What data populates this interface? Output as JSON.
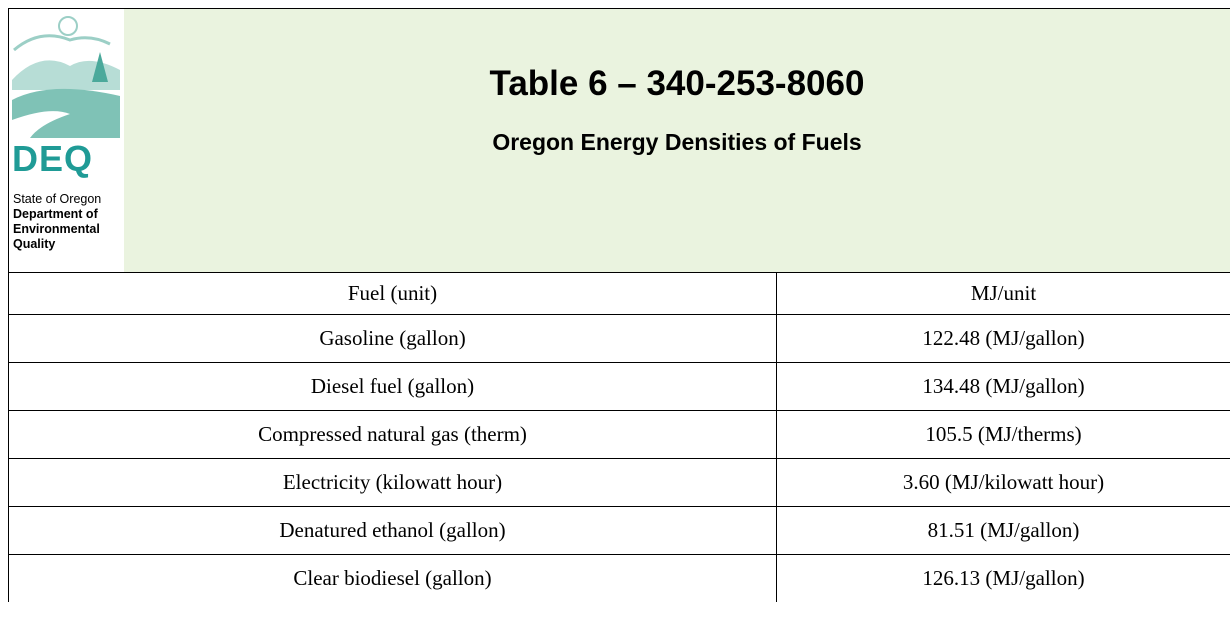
{
  "logo": {
    "acronym": "DEQ",
    "lines": [
      "State of Oregon",
      "Department of",
      "Environmental",
      "Quality"
    ]
  },
  "header": {
    "title": "Table 6 – 340-253-8060",
    "subtitle": "Oregon Energy Densities of Fuels"
  },
  "table": {
    "columns": [
      "Fuel (unit)",
      "MJ/unit"
    ],
    "rows": [
      [
        "Gasoline (gallon)",
        "122.48 (MJ/gallon)"
      ],
      [
        "Diesel fuel (gallon)",
        "134.48 (MJ/gallon)"
      ],
      [
        "Compressed natural gas (therm)",
        "105.5 (MJ/therms)"
      ],
      [
        "Electricity (kilowatt hour)",
        "3.60 (MJ/kilowatt hour)"
      ],
      [
        "Denatured ethanol (gallon)",
        "81.51 (MJ/gallon)"
      ],
      [
        "Clear biodiesel (gallon)",
        "126.13 (MJ/gallon)"
      ]
    ]
  }
}
